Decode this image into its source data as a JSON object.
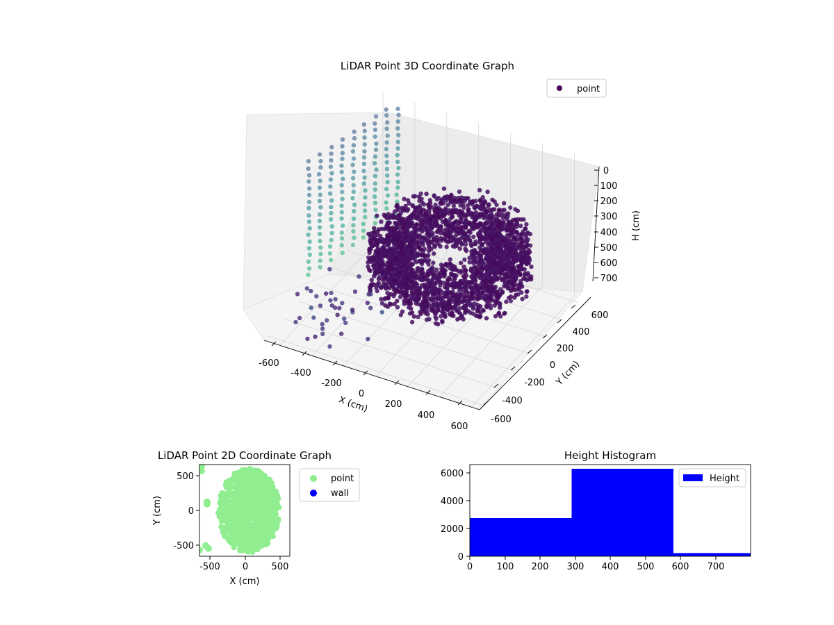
{
  "chart_data": [
    {
      "type": "scatter3d",
      "title": "LiDAR Point 3D Coordinate Graph",
      "xlabel": "X (cm)",
      "ylabel": "Y (cm)",
      "zlabel": "H (cm)",
      "xlim": [
        -700,
        650
      ],
      "ylim": [
        -650,
        650
      ],
      "zlim": [
        0,
        750
      ],
      "z_inverted": true,
      "x_ticks": [
        -600,
        -400,
        -200,
        0,
        200,
        400,
        600
      ],
      "y_ticks": [
        -600,
        -400,
        -200,
        0,
        200,
        400,
        600
      ],
      "z_ticks": [
        0,
        100,
        200,
        300,
        400,
        500,
        600,
        700
      ],
      "legend": [
        {
          "label": "point",
          "color": "#440154"
        }
      ],
      "legend_position": "upper-right",
      "grid": true,
      "series": [
        {
          "name": "point",
          "colormap": "viridis",
          "description_points": [
            {
              "x": -630,
              "y": -50,
              "h": 10
            },
            {
              "x": -600,
              "y": 150,
              "h": 150
            },
            {
              "x": -550,
              "y": 300,
              "h": 300
            },
            {
              "x": -500,
              "y": 450,
              "h": 450
            },
            {
              "x": -450,
              "y": 560,
              "h": 560
            },
            {
              "x": -400,
              "y": 600,
              "h": 650
            },
            {
              "x": 0,
              "y": 0,
              "h": 450
            },
            {
              "x": 300,
              "y": 200,
              "h": 380
            },
            {
              "x": 450,
              "y": -100,
              "h": 420
            },
            {
              "x": -100,
              "y": -450,
              "h": 500
            }
          ]
        }
      ]
    },
    {
      "type": "scatter",
      "title": "LiDAR Point 2D Coordinate Graph",
      "xlabel": "X (cm)",
      "ylabel": "Y (cm)",
      "xlim": [
        -650,
        650
      ],
      "ylim": [
        -650,
        650
      ],
      "x_ticks": [
        -500,
        0,
        500
      ],
      "y_ticks": [
        -500,
        0,
        500
      ],
      "legend": [
        {
          "label": "point",
          "color": "#90ee90"
        },
        {
          "label": "wall",
          "color": "#0000ff"
        }
      ],
      "legend_position": "outside-right",
      "series": [
        {
          "name": "point",
          "color": "#90ee90",
          "region": "disc centred near (100, 0) radius ~500 plus scattered points near x=-600"
        },
        {
          "name": "wall",
          "color": "#0000ff",
          "points": []
        }
      ]
    },
    {
      "type": "bar",
      "title": "Height Histogram",
      "xlabel": "",
      "ylabel": "",
      "xlim": [
        0,
        800
      ],
      "ylim": [
        0,
        6600
      ],
      "x_ticks": [
        0,
        100,
        200,
        300,
        400,
        500,
        600,
        700
      ],
      "y_ticks": [
        0,
        2000,
        4000,
        6000
      ],
      "legend": [
        {
          "label": "Height",
          "color": "#0000ff"
        }
      ],
      "legend_position": "upper-right",
      "bins": [
        {
          "from": 0,
          "to": 290,
          "count": 2750
        },
        {
          "from": 290,
          "to": 580,
          "count": 6300
        },
        {
          "from": 580,
          "to": 870,
          "count": 230
        }
      ]
    }
  ]
}
